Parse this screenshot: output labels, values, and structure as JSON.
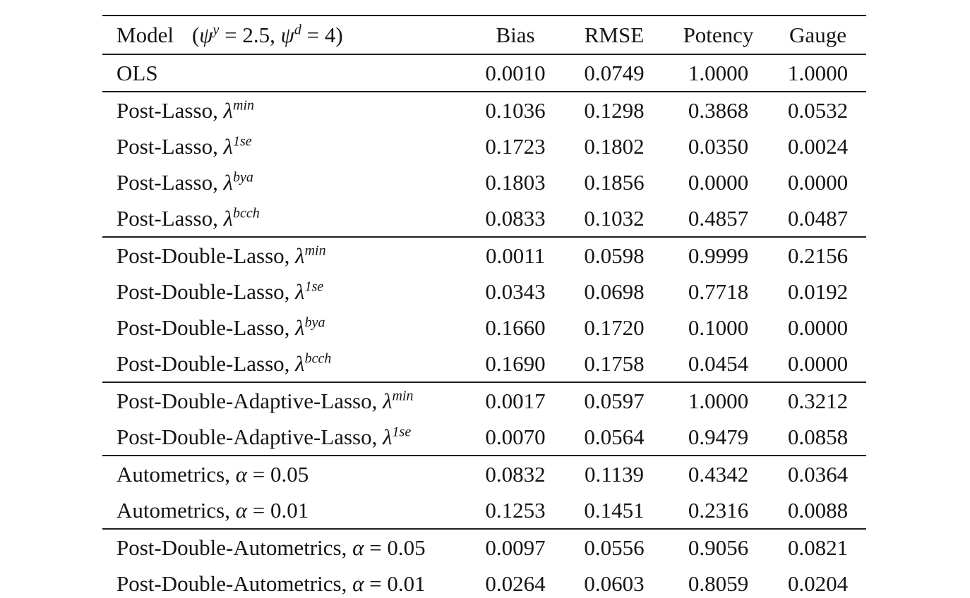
{
  "colors": {
    "background": "#ffffff",
    "text": "#141414",
    "rule": "#1e1e1e"
  },
  "table": {
    "header": {
      "model_segments": [
        {
          "t": "rm",
          "v": "Model"
        },
        {
          "t": "sp",
          "v": ""
        },
        {
          "t": "rm",
          "v": "("
        },
        {
          "t": "it",
          "v": "ψ"
        },
        {
          "t": "sup",
          "v": "y"
        },
        {
          "t": "rm",
          "v": " = 2.5, "
        },
        {
          "t": "it",
          "v": "ψ"
        },
        {
          "t": "sup",
          "v": "d"
        },
        {
          "t": "rm",
          "v": " = 4)"
        }
      ],
      "metrics": [
        "Bias",
        "RMSE",
        "Potency",
        "Gauge"
      ]
    },
    "groups": [
      {
        "name": "ols",
        "rows": [
          {
            "label": [
              {
                "t": "rm",
                "v": "OLS"
              }
            ],
            "values": [
              "0.0010",
              "0.0749",
              "1.0000",
              "1.0000"
            ]
          }
        ]
      },
      {
        "name": "post-lasso",
        "rows": [
          {
            "label": [
              {
                "t": "rm",
                "v": "Post-Lasso, "
              },
              {
                "t": "it",
                "v": "λ"
              },
              {
                "t": "sup",
                "v": "min"
              }
            ],
            "values": [
              "0.1036",
              "0.1298",
              "0.3868",
              "0.0532"
            ]
          },
          {
            "label": [
              {
                "t": "rm",
                "v": "Post-Lasso, "
              },
              {
                "t": "it",
                "v": "λ"
              },
              {
                "t": "sup",
                "v": "1se"
              }
            ],
            "values": [
              "0.1723",
              "0.1802",
              "0.0350",
              "0.0024"
            ]
          },
          {
            "label": [
              {
                "t": "rm",
                "v": "Post-Lasso, "
              },
              {
                "t": "it",
                "v": "λ"
              },
              {
                "t": "sup",
                "v": "bya"
              }
            ],
            "values": [
              "0.1803",
              "0.1856",
              "0.0000",
              "0.0000"
            ]
          },
          {
            "label": [
              {
                "t": "rm",
                "v": "Post-Lasso, "
              },
              {
                "t": "it",
                "v": "λ"
              },
              {
                "t": "sup",
                "v": "bcch"
              }
            ],
            "values": [
              "0.0833",
              "0.1032",
              "0.4857",
              "0.0487"
            ]
          }
        ]
      },
      {
        "name": "post-double-lasso",
        "rows": [
          {
            "label": [
              {
                "t": "rm",
                "v": "Post-Double-Lasso, "
              },
              {
                "t": "it",
                "v": "λ"
              },
              {
                "t": "sup",
                "v": "min"
              }
            ],
            "values": [
              "0.0011",
              "0.0598",
              "0.9999",
              "0.2156"
            ]
          },
          {
            "label": [
              {
                "t": "rm",
                "v": "Post-Double-Lasso, "
              },
              {
                "t": "it",
                "v": "λ"
              },
              {
                "t": "sup",
                "v": "1se"
              }
            ],
            "values": [
              "0.0343",
              "0.0698",
              "0.7718",
              "0.0192"
            ]
          },
          {
            "label": [
              {
                "t": "rm",
                "v": "Post-Double-Lasso, "
              },
              {
                "t": "it",
                "v": "λ"
              },
              {
                "t": "sup",
                "v": "bya"
              }
            ],
            "values": [
              "0.1660",
              "0.1720",
              "0.1000",
              "0.0000"
            ]
          },
          {
            "label": [
              {
                "t": "rm",
                "v": "Post-Double-Lasso, "
              },
              {
                "t": "it",
                "v": "λ"
              },
              {
                "t": "sup",
                "v": "bcch"
              }
            ],
            "values": [
              "0.1690",
              "0.1758",
              "0.0454",
              "0.0000"
            ]
          }
        ]
      },
      {
        "name": "post-double-adaptive-lasso",
        "rows": [
          {
            "label": [
              {
                "t": "rm",
                "v": "Post-Double-Adaptive-Lasso, "
              },
              {
                "t": "it",
                "v": "λ"
              },
              {
                "t": "sup",
                "v": "min"
              }
            ],
            "values": [
              "0.0017",
              "0.0597",
              "1.0000",
              "0.3212"
            ]
          },
          {
            "label": [
              {
                "t": "rm",
                "v": "Post-Double-Adaptive-Lasso, "
              },
              {
                "t": "it",
                "v": "λ"
              },
              {
                "t": "sup",
                "v": "1se"
              }
            ],
            "values": [
              "0.0070",
              "0.0564",
              "0.9479",
              "0.0858"
            ]
          }
        ]
      },
      {
        "name": "autometrics",
        "rows": [
          {
            "label": [
              {
                "t": "rm",
                "v": "Autometrics, "
              },
              {
                "t": "it",
                "v": "α"
              },
              {
                "t": "rm",
                "v": " = 0.05"
              }
            ],
            "values": [
              "0.0832",
              "0.1139",
              "0.4342",
              "0.0364"
            ]
          },
          {
            "label": [
              {
                "t": "rm",
                "v": "Autometrics, "
              },
              {
                "t": "it",
                "v": "α"
              },
              {
                "t": "rm",
                "v": " = 0.01"
              }
            ],
            "values": [
              "0.1253",
              "0.1451",
              "0.2316",
              "0.0088"
            ]
          }
        ]
      },
      {
        "name": "post-double-autometrics",
        "rows": [
          {
            "label": [
              {
                "t": "rm",
                "v": "Post-Double-Autometrics, "
              },
              {
                "t": "it",
                "v": "α"
              },
              {
                "t": "rm",
                "v": " = 0.05"
              }
            ],
            "values": [
              "0.0097",
              "0.0556",
              "0.9056",
              "0.0821"
            ]
          },
          {
            "label": [
              {
                "t": "rm",
                "v": "Post-Double-Autometrics, "
              },
              {
                "t": "it",
                "v": "α"
              },
              {
                "t": "rm",
                "v": " = 0.01"
              }
            ],
            "values": [
              "0.0264",
              "0.0603",
              "0.8059",
              "0.0204"
            ]
          }
        ]
      }
    ]
  }
}
